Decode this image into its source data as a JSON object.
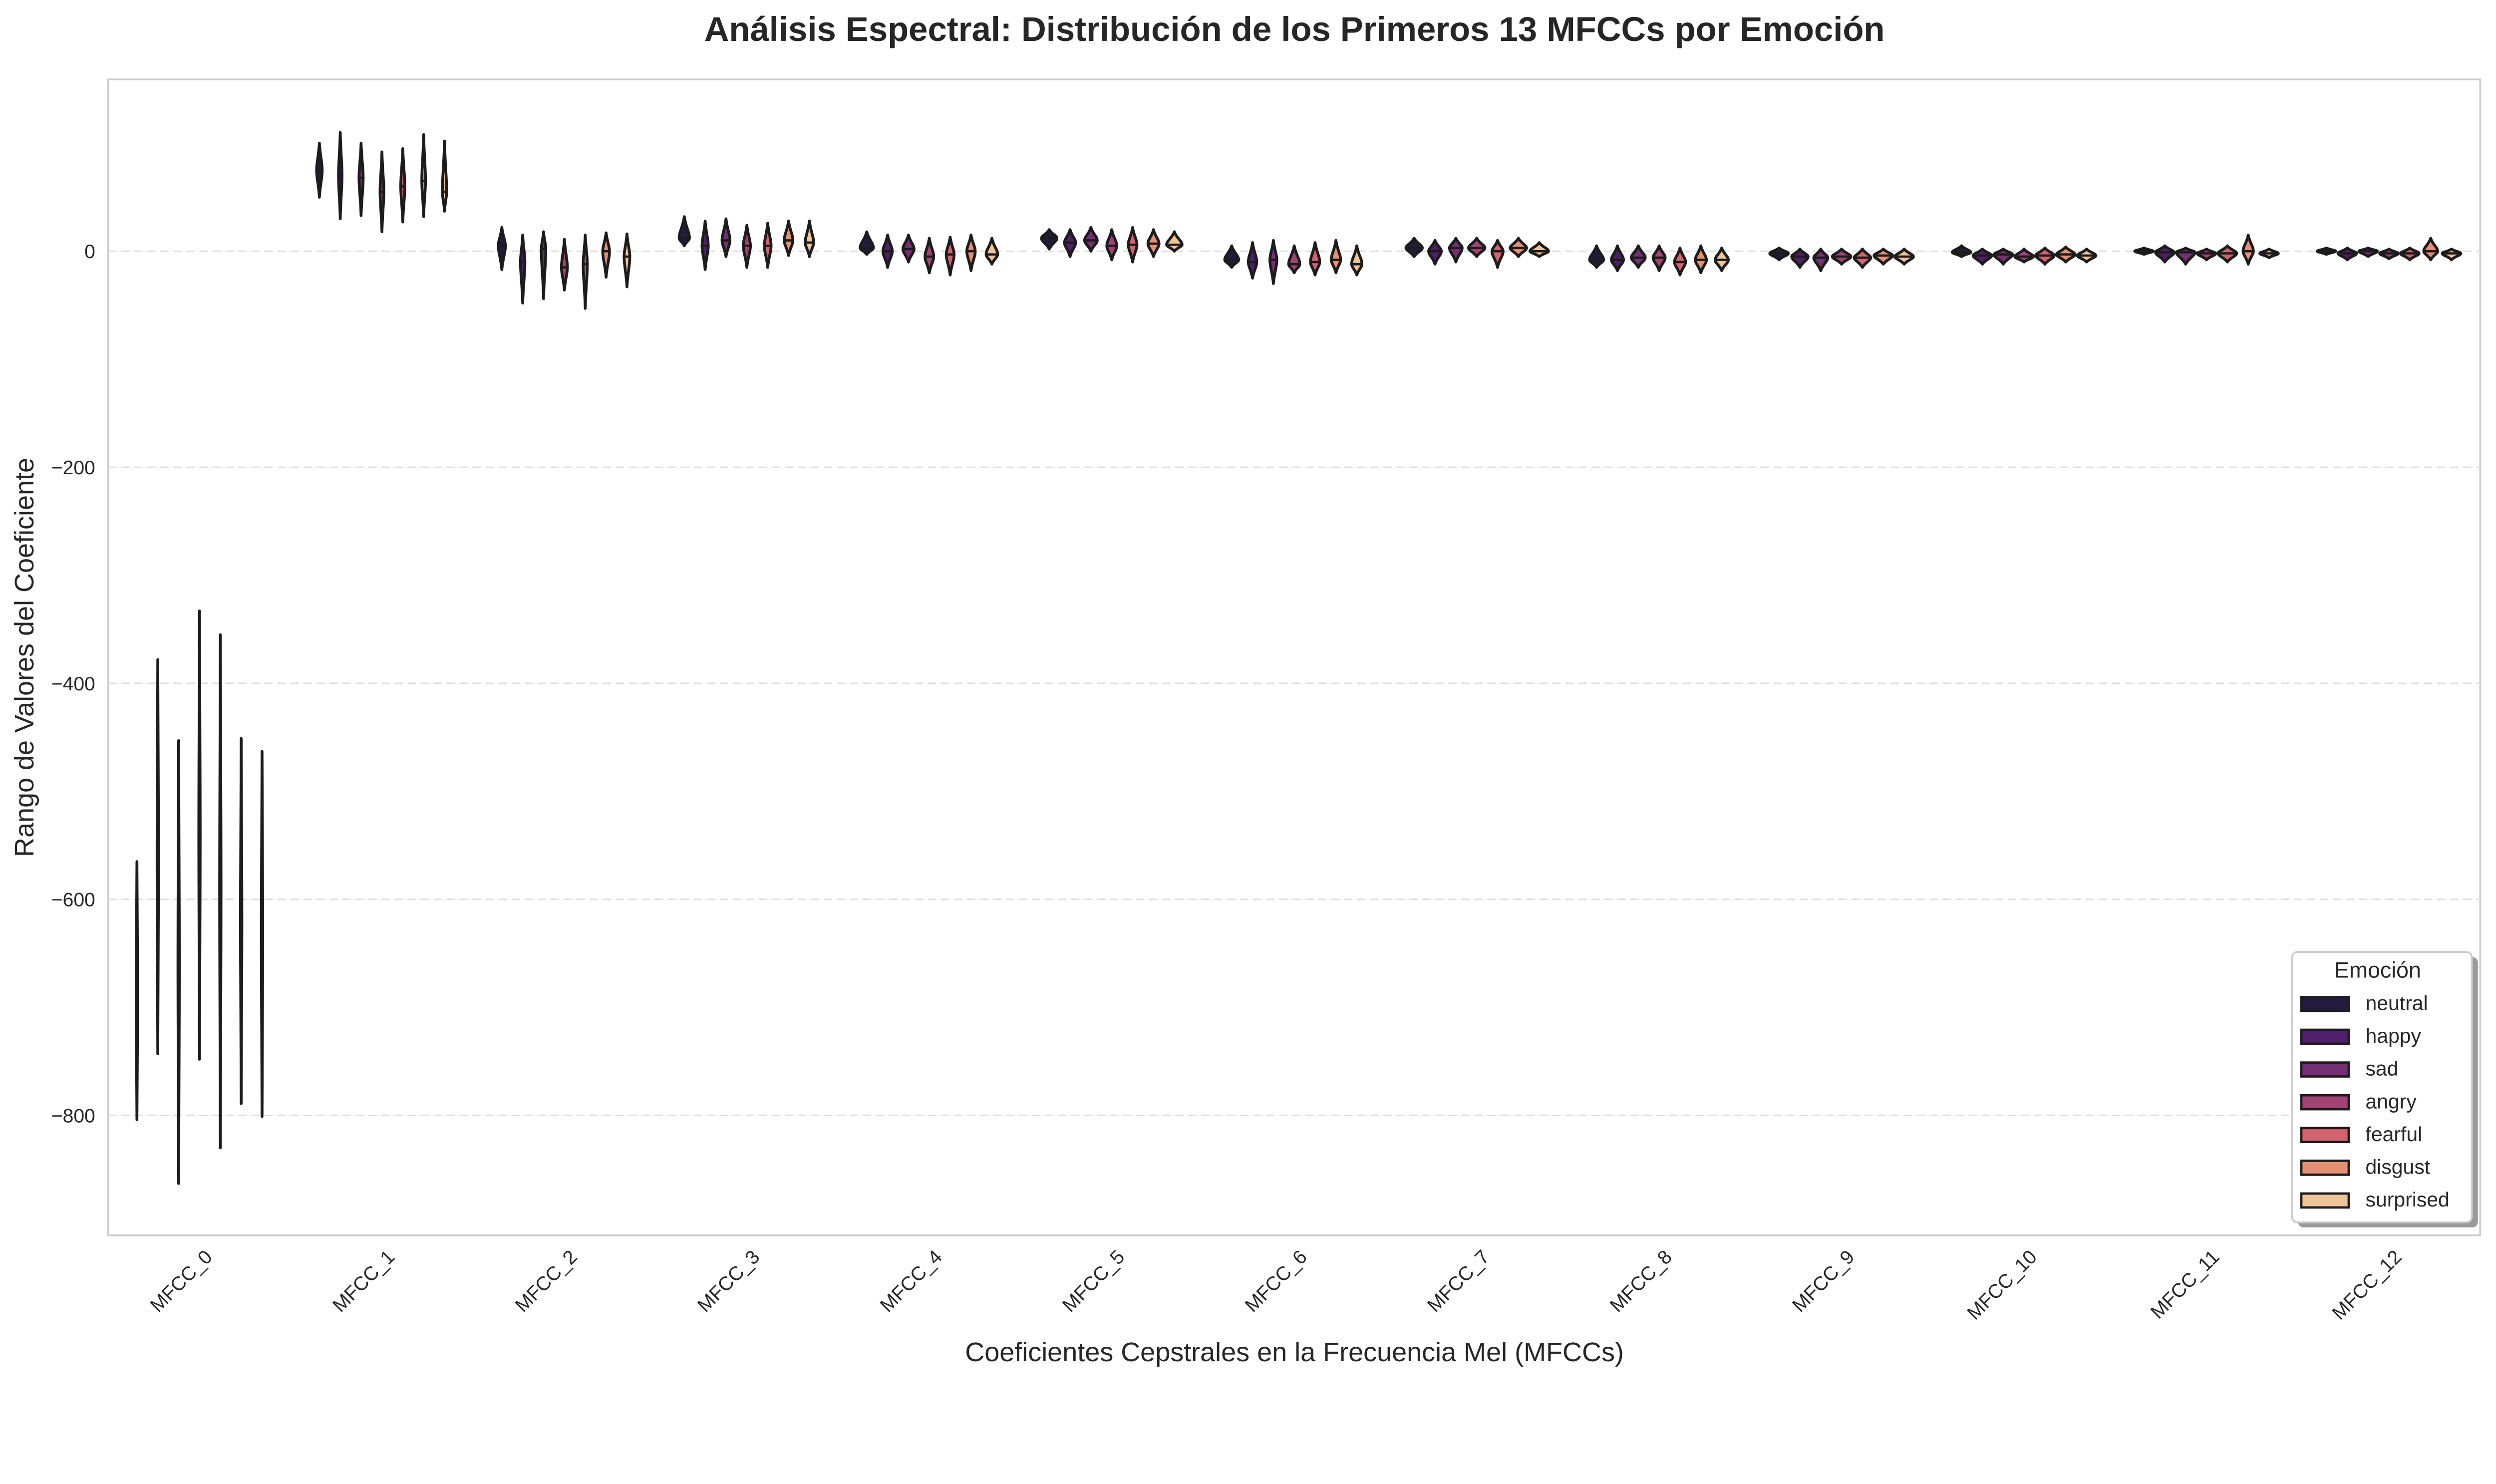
{
  "chart_data": {
    "type": "violin",
    "title": "Análisis Espectral: Distribución de los Primeros 13 MFCCs por Emoción",
    "xlabel": "Coeficientes Cepstrales en la Frecuencia Mel (MFCCs)",
    "ylabel": "Rango de Valores del Coeficiente",
    "ylim": [
      -911,
      159
    ],
    "yticks": [
      0,
      -200,
      -400,
      -600,
      -800
    ],
    "ytick_labels": [
      "0",
      "−200",
      "−400",
      "−600",
      "−800"
    ],
    "grid": "horizontal dashed",
    "categories": [
      "MFCC_0",
      "MFCC_1",
      "MFCC_2",
      "MFCC_3",
      "MFCC_4",
      "MFCC_5",
      "MFCC_6",
      "MFCC_7",
      "MFCC_8",
      "MFCC_9",
      "MFCC_10",
      "MFCC_11",
      "MFCC_12"
    ],
    "legend": {
      "title": "Emoción",
      "placement": "bottom-right"
    },
    "series": [
      {
        "name": "neutral",
        "color": "#221a3f",
        "values": [
          {
            "min": -804,
            "median": -690,
            "max": -565
          },
          {
            "min": 50,
            "median": 75,
            "max": 100
          },
          {
            "min": -17,
            "median": 5,
            "max": 22
          },
          {
            "min": 5,
            "median": 12,
            "max": 32
          },
          {
            "min": -3,
            "median": 3,
            "max": 18
          },
          {
            "min": 2,
            "median": 12,
            "max": 20
          },
          {
            "min": -15,
            "median": -8,
            "max": 5
          },
          {
            "min": -5,
            "median": 3,
            "max": 12
          },
          {
            "min": -15,
            "median": -8,
            "max": 5
          },
          {
            "min": -8,
            "median": -2,
            "max": 3
          },
          {
            "min": -5,
            "median": -1,
            "max": 5
          },
          {
            "min": -3,
            "median": 0,
            "max": 3
          },
          {
            "min": -3,
            "median": 0,
            "max": 3
          }
        ]
      },
      {
        "name": "happy",
        "color": "#4f1f6b",
        "values": [
          {
            "min": -743,
            "median": -560,
            "max": -378
          },
          {
            "min": 30,
            "median": 70,
            "max": 110
          },
          {
            "min": -48,
            "median": -10,
            "max": 15
          },
          {
            "min": -17,
            "median": 5,
            "max": 28
          },
          {
            "min": -15,
            "median": 0,
            "max": 15
          },
          {
            "min": -5,
            "median": 8,
            "max": 20
          },
          {
            "min": -25,
            "median": -10,
            "max": 8
          },
          {
            "min": -12,
            "median": 0,
            "max": 10
          },
          {
            "min": -18,
            "median": -8,
            "max": 5
          },
          {
            "min": -15,
            "median": -5,
            "max": 2
          },
          {
            "min": -12,
            "median": -4,
            "max": 2
          },
          {
            "min": -10,
            "median": -1,
            "max": 5
          },
          {
            "min": -8,
            "median": -2,
            "max": 3
          }
        ]
      },
      {
        "name": "sad",
        "color": "#762f74",
        "values": [
          {
            "min": -863,
            "median": -660,
            "max": -453
          },
          {
            "min": 33,
            "median": 68,
            "max": 100
          },
          {
            "min": -44,
            "median": 2,
            "max": 18
          },
          {
            "min": -5,
            "median": 10,
            "max": 30
          },
          {
            "min": -10,
            "median": 2,
            "max": 15
          },
          {
            "min": 0,
            "median": 10,
            "max": 22
          },
          {
            "min": -30,
            "median": -8,
            "max": 10
          },
          {
            "min": -10,
            "median": 3,
            "max": 12
          },
          {
            "min": -15,
            "median": -6,
            "max": 5
          },
          {
            "min": -18,
            "median": -6,
            "max": 2
          },
          {
            "min": -12,
            "median": -3,
            "max": 2
          },
          {
            "min": -12,
            "median": -1,
            "max": 3
          },
          {
            "min": -5,
            "median": 0,
            "max": 3
          }
        ]
      },
      {
        "name": "angry",
        "color": "#a34475",
        "values": [
          {
            "min": -748,
            "median": -540,
            "max": -333
          },
          {
            "min": 18,
            "median": 55,
            "max": 92
          },
          {
            "min": -36,
            "median": -15,
            "max": 11
          },
          {
            "min": -15,
            "median": 5,
            "max": 24
          },
          {
            "min": -20,
            "median": -5,
            "max": 12
          },
          {
            "min": -8,
            "median": 5,
            "max": 20
          },
          {
            "min": -20,
            "median": -12,
            "max": 5
          },
          {
            "min": -5,
            "median": 3,
            "max": 12
          },
          {
            "min": -18,
            "median": -6,
            "max": 5
          },
          {
            "min": -12,
            "median": -5,
            "max": 2
          },
          {
            "min": -10,
            "median": -5,
            "max": 2
          },
          {
            "min": -8,
            "median": -2,
            "max": 2
          },
          {
            "min": -7,
            "median": -2,
            "max": 2
          }
        ]
      },
      {
        "name": "fearful",
        "color": "#d5626f",
        "values": [
          {
            "min": -830,
            "median": -590,
            "max": -355
          },
          {
            "min": 27,
            "median": 60,
            "max": 95
          },
          {
            "min": -53,
            "median": -12,
            "max": 15
          },
          {
            "min": -15,
            "median": 5,
            "max": 26
          },
          {
            "min": -22,
            "median": -3,
            "max": 13
          },
          {
            "min": -10,
            "median": 6,
            "max": 22
          },
          {
            "min": -22,
            "median": -10,
            "max": 8
          },
          {
            "min": -15,
            "median": 0,
            "max": 10
          },
          {
            "min": -22,
            "median": -10,
            "max": 3
          },
          {
            "min": -15,
            "median": -6,
            "max": 2
          },
          {
            "min": -12,
            "median": -4,
            "max": 3
          },
          {
            "min": -10,
            "median": -2,
            "max": 5
          },
          {
            "min": -8,
            "median": -2,
            "max": 3
          }
        ]
      },
      {
        "name": "disgust",
        "color": "#e69174",
        "values": [
          {
            "min": -789,
            "median": -620,
            "max": -451
          },
          {
            "min": 32,
            "median": 65,
            "max": 108
          },
          {
            "min": -24,
            "median": 0,
            "max": 17
          },
          {
            "min": -4,
            "median": 10,
            "max": 28
          },
          {
            "min": -18,
            "median": 0,
            "max": 15
          },
          {
            "min": -5,
            "median": 7,
            "max": 20
          },
          {
            "min": -20,
            "median": -8,
            "max": 10
          },
          {
            "min": -5,
            "median": 3,
            "max": 12
          },
          {
            "min": -20,
            "median": -8,
            "max": 5
          },
          {
            "min": -12,
            "median": -4,
            "max": 2
          },
          {
            "min": -10,
            "median": -3,
            "max": 4
          },
          {
            "min": -12,
            "median": 0,
            "max": 15
          },
          {
            "min": -8,
            "median": 0,
            "max": 12
          }
        ]
      },
      {
        "name": "surprised",
        "color": "#efc498",
        "values": [
          {
            "min": -801,
            "median": -632,
            "max": -463
          },
          {
            "min": 37,
            "median": 55,
            "max": 102
          },
          {
            "min": -33,
            "median": -5,
            "max": 16
          },
          {
            "min": -5,
            "median": 8,
            "max": 28
          },
          {
            "min": -12,
            "median": -3,
            "max": 12
          },
          {
            "min": 0,
            "median": 6,
            "max": 18
          },
          {
            "min": -22,
            "median": -12,
            "max": 5
          },
          {
            "min": -5,
            "median": 0,
            "max": 8
          },
          {
            "min": -18,
            "median": -8,
            "max": 3
          },
          {
            "min": -12,
            "median": -5,
            "max": 2
          },
          {
            "min": -10,
            "median": -4,
            "max": 2
          },
          {
            "min": -6,
            "median": -2,
            "max": 2
          },
          {
            "min": -8,
            "median": -2,
            "max": 2
          }
        ]
      }
    ]
  }
}
